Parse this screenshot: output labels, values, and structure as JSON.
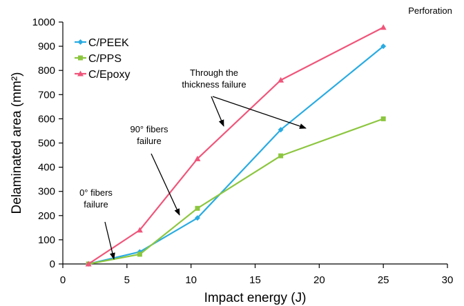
{
  "chart_data": {
    "type": "line",
    "title": "",
    "xlabel": "Impact energy (J)",
    "ylabel": "Delaminated area (mm²)",
    "xlim": [
      0,
      30
    ],
    "ylim": [
      0,
      1000
    ],
    "xticks": [
      0,
      5,
      10,
      15,
      20,
      25,
      30
    ],
    "yticks": [
      0,
      100,
      200,
      300,
      400,
      500,
      600,
      700,
      800,
      900,
      1000
    ],
    "grid": false,
    "legend_position": "top-left",
    "series": [
      {
        "name": "C/PEEK",
        "color": "#29abe2",
        "marker": "diamond",
        "points": [
          [
            2,
            0
          ],
          [
            6,
            50
          ],
          [
            10.5,
            190
          ],
          [
            17,
            555
          ],
          [
            25,
            900
          ]
        ]
      },
      {
        "name": "C/PPS",
        "color": "#8cc63f",
        "marker": "square",
        "points": [
          [
            2,
            0
          ],
          [
            6,
            40
          ],
          [
            10.5,
            230
          ],
          [
            17,
            447
          ],
          [
            25,
            600
          ]
        ]
      },
      {
        "name": "C/Epoxy",
        "color": "#f0557a",
        "marker": "triangle",
        "points": [
          [
            2,
            0
          ],
          [
            6,
            140
          ],
          [
            10.5,
            435
          ],
          [
            17,
            760
          ],
          [
            25,
            978
          ]
        ]
      }
    ],
    "annotations": [
      {
        "id": "perforation",
        "lines": [
          "Perforation"
        ]
      },
      {
        "id": "zero-fibers",
        "lines": [
          "0° fibers",
          "failure"
        ]
      },
      {
        "id": "ninety-fibers",
        "lines": [
          "90° fibers",
          "failure"
        ]
      },
      {
        "id": "through-thickness",
        "lines": [
          "Through the",
          "thickness failure"
        ]
      }
    ]
  }
}
